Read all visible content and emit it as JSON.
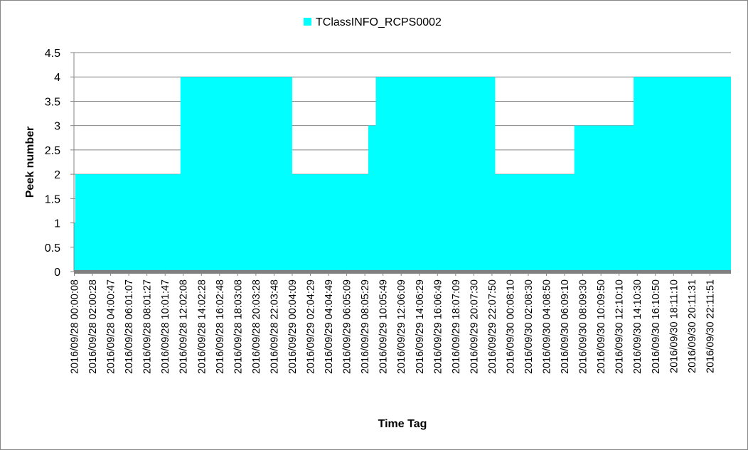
{
  "chart_data": {
    "type": "area",
    "title": "",
    "xlabel": "Time Tag",
    "ylabel": "Peek number",
    "ylim": [
      0,
      4.5
    ],
    "yticks": [
      "0",
      "0.5",
      "1",
      "1.5",
      "2",
      "2.5",
      "3",
      "3.5",
      "4",
      "4.5"
    ],
    "grid": true,
    "legend_position": "top-center",
    "series": [
      {
        "name": "TClassINFO_RCPS0002",
        "color": "#00FFFF",
        "step_points": [
          {
            "x": "2016/09/28 00:00:08",
            "y": 1
          },
          {
            "x": "2016/09/28 00:09:00",
            "y": 2
          },
          {
            "x": "2016/09/28 11:40:00",
            "y": 4
          },
          {
            "x": "2016/09/28 23:55:00",
            "y": 2
          },
          {
            "x": "2016/09/29 08:15:00",
            "y": 3
          },
          {
            "x": "2016/09/29 09:05:00",
            "y": 4
          },
          {
            "x": "2016/09/29 22:10:00",
            "y": 2
          },
          {
            "x": "2016/09/30 06:50:00",
            "y": 3
          },
          {
            "x": "2016/09/30 13:20:00",
            "y": 4
          },
          {
            "x": "2016/09/30 23:59:59",
            "y": 4
          }
        ]
      }
    ],
    "categories": [
      "2016/09/28 00:00:08",
      "2016/09/28 02:00:28",
      "2016/09/28 04:00:47",
      "2016/09/28 06:01:07",
      "2016/09/28 08:01:27",
      "2016/09/28 10:01:47",
      "2016/09/28 12:02:08",
      "2016/09/28 14:02:28",
      "2016/09/28 16:02:48",
      "2016/09/28 18:03:08",
      "2016/09/28 20:03:28",
      "2016/09/28 22:03:48",
      "2016/09/29 00:04:09",
      "2016/09/29 02:04:29",
      "2016/09/29 04:04:49",
      "2016/09/29 06:05:09",
      "2016/09/29 08:05:29",
      "2016/09/29 10:05:49",
      "2016/09/29 12:06:09",
      "2016/09/29 14:06:29",
      "2016/09/29 16:06:49",
      "2016/09/29 18:07:09",
      "2016/09/29 20:07:30",
      "2016/09/29 22:07:50",
      "2016/09/30 00:08:10",
      "2016/09/30 02:08:30",
      "2016/09/30 04:08:50",
      "2016/09/30 06:09:10",
      "2016/09/30 08:09:30",
      "2016/09/30 10:09:50",
      "2016/09/30 12:10:10",
      "2016/09/30 14:10:30",
      "2016/09/30 16:10:50",
      "2016/09/30 18:11:10",
      "2016/09/30 20:11:31",
      "2016/09/30 22:11:51"
    ]
  }
}
